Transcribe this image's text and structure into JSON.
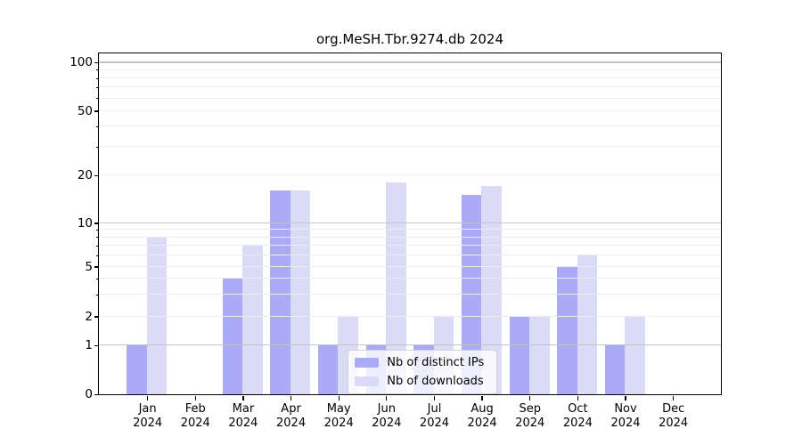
{
  "title": "org.MeSH.Tbr.9274.db 2024",
  "legend": {
    "items": [
      {
        "label": "Nb of distinct IPs",
        "series": "ips"
      },
      {
        "label": "Nb of downloads",
        "series": "downloads"
      }
    ]
  },
  "colors": {
    "ips": "#aaaaf7",
    "downloads": "#dbdbf8",
    "grid_major": "#c4c4c4",
    "grid_minor": "#ebebeb",
    "axis": "#000000"
  },
  "y_axis": {
    "tick_labels": [
      "0",
      "1",
      "2",
      "5",
      "10",
      "20",
      "50",
      "100"
    ]
  },
  "chart_data": {
    "type": "bar",
    "title": "org.MeSH.Tbr.9274.db 2024",
    "categories": [
      "Jan 2024",
      "Feb 2024",
      "Mar 2024",
      "Apr 2024",
      "May 2024",
      "Jun 2024",
      "Jul 2024",
      "Aug 2024",
      "Sep 2024",
      "Oct 2024",
      "Nov 2024",
      "Dec 2024"
    ],
    "series": [
      {
        "name": "Nb of distinct IPs",
        "color": "#aaaaf7",
        "values": [
          1,
          0,
          4,
          16,
          1,
          1,
          1,
          15,
          2,
          5,
          1,
          0
        ]
      },
      {
        "name": "Nb of downloads",
        "color": "#dbdbf8",
        "values": [
          8,
          0,
          7,
          16,
          2,
          18,
          2,
          17,
          2,
          6,
          2,
          0
        ]
      }
    ],
    "xlabel": "",
    "ylabel": "",
    "yscale": "symlog",
    "ylim": [
      0,
      113
    ],
    "y_ticks": [
      0,
      1,
      2,
      5,
      10,
      20,
      50,
      100
    ],
    "grid": true,
    "legend_position": "lower-center-inside"
  }
}
